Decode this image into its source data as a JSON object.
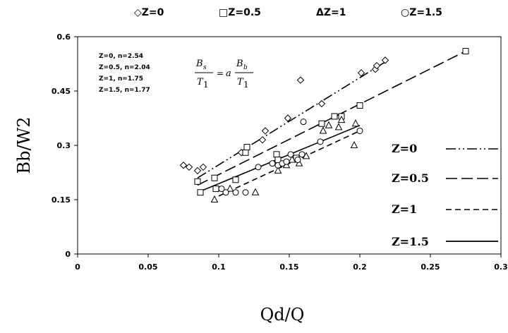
{
  "chart_data": {
    "type": "scatter",
    "xlabel": "Qd/Q",
    "ylabel": "Bb/W2",
    "xlim": [
      0,
      0.3
    ],
    "ylim": [
      0,
      0.6
    ],
    "x_ticks": [
      "0",
      "0.05",
      "0.1",
      "0.15",
      "0.2",
      "0.25",
      "0.3"
    ],
    "y_ticks": [
      "0",
      "0.15",
      "0.3",
      "0.45",
      "0.6"
    ],
    "grid": false,
    "legend_top": [
      "◇Z=0",
      "□Z=0.5",
      "ΔZ=1",
      "○Z=1.5"
    ],
    "legend_right": [
      "Z=0",
      "Z=0.5",
      "Z=1",
      "Z=1.5"
    ],
    "annotation": [
      "Z=0, n=2.54",
      "Z=0.5, n=2.04",
      "Z=1, n=1.75",
      "Z=1.5, n=1.77"
    ],
    "equation": {
      "lhs_num": "B",
      "lhs_num_sub": "s",
      "lhs_den": "T",
      "lhs_den_sub": "1",
      "eq": "=",
      "coef": "a",
      "rhs_num": "B",
      "rhs_num_sub": "b",
      "rhs_den": "T",
      "rhs_den_sub": "1"
    },
    "series": [
      {
        "name": "Z=0",
        "marker": "diamond",
        "line_dash": "dashdotdot",
        "x": [
          0.075,
          0.079,
          0.085,
          0.089,
          0.116,
          0.131,
          0.133,
          0.149,
          0.158,
          0.173,
          0.201,
          0.211,
          0.212,
          0.218
        ],
        "y": [
          0.245,
          0.24,
          0.23,
          0.24,
          0.28,
          0.315,
          0.34,
          0.375,
          0.48,
          0.415,
          0.5,
          0.51,
          0.52,
          0.535
        ],
        "fit": {
          "x": [
            0.085,
            0.22
          ],
          "y": [
            0.21,
            0.535
          ]
        }
      },
      {
        "name": "Z=0.5",
        "marker": "square",
        "line_dash": "longdash",
        "x": [
          0.085,
          0.087,
          0.097,
          0.098,
          0.112,
          0.119,
          0.12,
          0.141,
          0.142,
          0.155,
          0.173,
          0.182,
          0.187,
          0.2,
          0.275
        ],
        "y": [
          0.2,
          0.17,
          0.21,
          0.18,
          0.205,
          0.28,
          0.295,
          0.275,
          0.26,
          0.265,
          0.36,
          0.38,
          0.38,
          0.41,
          0.56
        ],
        "fit": {
          "x": [
            0.085,
            0.275
          ],
          "y": [
            0.19,
            0.56
          ]
        }
      },
      {
        "name": "Z=1",
        "marker": "triangle",
        "line_dash": "shortdash",
        "x": [
          0.097,
          0.108,
          0.126,
          0.142,
          0.148,
          0.152,
          0.157,
          0.162,
          0.174,
          0.178,
          0.185,
          0.187,
          0.196,
          0.197
        ],
        "y": [
          0.15,
          0.18,
          0.17,
          0.23,
          0.245,
          0.26,
          0.25,
          0.27,
          0.34,
          0.355,
          0.35,
          0.37,
          0.3,
          0.36
        ],
        "fit": {
          "x": [
            0.1,
            0.2
          ],
          "y": [
            0.16,
            0.34
          ]
        }
      },
      {
        "name": "Z=1.5",
        "marker": "circle",
        "line_dash": "solid",
        "x": [
          0.102,
          0.105,
          0.112,
          0.119,
          0.128,
          0.138,
          0.142,
          0.145,
          0.148,
          0.151,
          0.156,
          0.159,
          0.16,
          0.172,
          0.2
        ],
        "y": [
          0.18,
          0.17,
          0.17,
          0.17,
          0.24,
          0.25,
          0.245,
          0.25,
          0.255,
          0.275,
          0.26,
          0.275,
          0.365,
          0.31,
          0.34
        ],
        "fit": {
          "x": [
            0.085,
            0.2
          ],
          "y": [
            0.17,
            0.355
          ]
        }
      }
    ]
  }
}
